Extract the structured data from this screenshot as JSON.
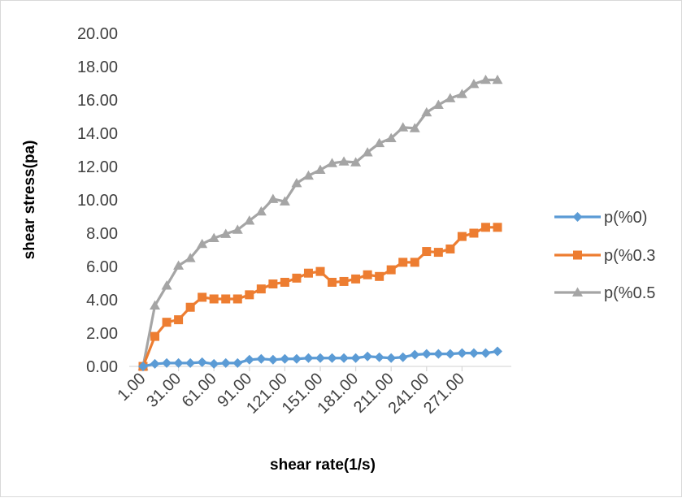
{
  "chart_data": {
    "type": "line",
    "title": "",
    "xlabel": "shear rate(1/s)",
    "ylabel": "shear stress(pa)",
    "ylim": [
      0,
      20
    ],
    "y_ticks": [
      "0.00",
      "2.00",
      "4.00",
      "6.00",
      "8.00",
      "10.00",
      "12.00",
      "14.00",
      "16.00",
      "18.00",
      "20.00"
    ],
    "x_tick_labels": [
      "1.00",
      "31.00",
      "61.00",
      "91.00",
      "121.00",
      "151.00",
      "181.00",
      "211.00",
      "241.00",
      "271.00"
    ],
    "x": [
      1,
      11,
      21,
      31,
      41,
      51,
      61,
      71,
      81,
      91,
      101,
      111,
      121,
      131,
      141,
      151,
      161,
      171,
      181,
      191,
      201,
      211,
      221,
      231,
      241,
      251,
      261,
      271,
      281,
      291,
      301
    ],
    "grid": false,
    "legend_position": "right",
    "series": [
      {
        "name": "p(%0)",
        "color": "#5b9bd5",
        "marker": "diamond",
        "values": [
          0.0,
          0.15,
          0.2,
          0.2,
          0.2,
          0.25,
          0.15,
          0.2,
          0.2,
          0.4,
          0.45,
          0.4,
          0.45,
          0.45,
          0.5,
          0.5,
          0.5,
          0.5,
          0.5,
          0.6,
          0.55,
          0.5,
          0.55,
          0.7,
          0.75,
          0.75,
          0.75,
          0.8,
          0.8,
          0.8,
          0.9
        ]
      },
      {
        "name": "p(%0.3",
        "color": "#ed7d31",
        "marker": "square",
        "values": [
          0.0,
          1.8,
          2.65,
          2.8,
          3.55,
          4.15,
          4.05,
          4.05,
          4.05,
          4.3,
          4.65,
          4.95,
          5.05,
          5.3,
          5.6,
          5.7,
          5.05,
          5.1,
          5.25,
          5.5,
          5.4,
          5.8,
          6.25,
          6.25,
          6.9,
          6.85,
          7.05,
          7.8,
          8.0,
          8.35,
          8.35
        ]
      },
      {
        "name": "p(%0.5",
        "color": "#a5a5a5",
        "marker": "triangle",
        "values": [
          0.0,
          3.65,
          4.85,
          6.05,
          6.5,
          7.35,
          7.7,
          7.95,
          8.2,
          8.75,
          9.3,
          10.05,
          9.9,
          11.0,
          11.45,
          11.8,
          12.2,
          12.3,
          12.25,
          12.85,
          13.4,
          13.7,
          14.35,
          14.3,
          15.25,
          15.7,
          16.1,
          16.35,
          16.95,
          17.2,
          17.2
        ]
      }
    ]
  }
}
